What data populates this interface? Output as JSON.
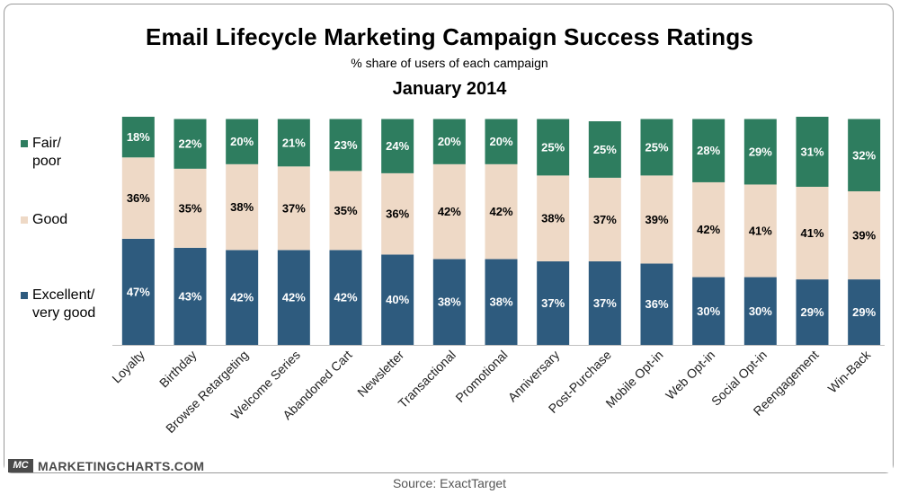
{
  "chart_data": {
    "type": "bar",
    "stacked": true,
    "title": "Email Lifecycle Marketing Campaign Success Ratings",
    "subtitle": "% share of users of each campaign",
    "period": "January 2014",
    "categories": [
      "Loyalty",
      "Birthday",
      "Browse Retargeting",
      "Welcome Series",
      "Abandoned Cart",
      "Newsletter",
      "Transactional",
      "Promotional",
      "Anniversary",
      "Post-Purchase",
      "Mobile Opt-in",
      "Web Opt-in",
      "Social Opt-in",
      "Reengagement",
      "Win-Back"
    ],
    "series": [
      {
        "name": "Excellent/ very good",
        "color": "#2e5b7e",
        "values": [
          47,
          43,
          42,
          42,
          42,
          40,
          38,
          38,
          37,
          37,
          36,
          30,
          30,
          29,
          29
        ]
      },
      {
        "name": "Good",
        "color": "#eed9c6",
        "values": [
          36,
          35,
          38,
          37,
          35,
          36,
          42,
          42,
          38,
          37,
          39,
          42,
          41,
          41,
          39
        ]
      },
      {
        "name": "Fair/ poor",
        "color": "#2e7d5f",
        "values": [
          18,
          22,
          20,
          21,
          23,
          24,
          20,
          20,
          25,
          25,
          25,
          28,
          29,
          31,
          32
        ]
      }
    ],
    "legend": [
      {
        "line1": "Fair/",
        "line2": "poor",
        "color": "#2e7d5f"
      },
      {
        "line1": "Good",
        "line2": "",
        "color": "#eed9c6"
      },
      {
        "line1": "Excellent/",
        "line2": "very good",
        "color": "#2e5b7e"
      }
    ],
    "ylim": [
      0,
      101
    ],
    "value_suffix": "%"
  },
  "branding": {
    "logo_text": "MC",
    "site": "MARKETINGCHARTS.COM"
  },
  "source": "Source: ExactTarget"
}
